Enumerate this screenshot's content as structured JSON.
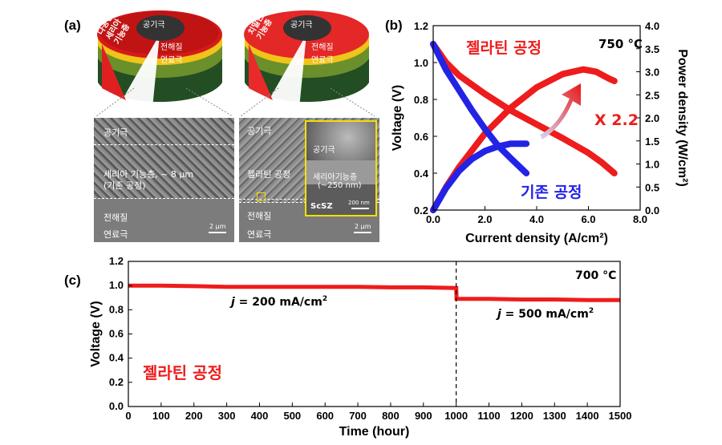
{
  "panel_a": {
    "label": "(a)",
    "left": {
      "top_labels": [
        "공기극",
        "전해질",
        "연료극"
      ],
      "side_text": "다공성 세리아 기능층",
      "sem": {
        "labels": [
          "공기극",
          "세리아 기능층, ~ 8 μm",
          "(기존 공정)",
          "전해질",
          "연료극"
        ],
        "scalebar": "2 μm"
      }
    },
    "right": {
      "top_labels": [
        "공기극",
        "전해질",
        "연료극"
      ],
      "side_text": "치밀한 기능층",
      "sem": {
        "labels": [
          "공기극",
          "젤라틴 공정",
          "전해질",
          "연료극"
        ],
        "scalebar": "2 μm",
        "inset": {
          "labels": [
            "공기극",
            "세리아기능층",
            "(~250 nm)",
            "ScSZ"
          ],
          "scalebar": "200 nm"
        }
      }
    }
  },
  "panel_b": {
    "label": "(b)",
    "temperature": "750 °C",
    "annotation_new": "젤라틴 공정",
    "annotation_old": "기존 공정",
    "factor": "X 2.2",
    "colors": {
      "new": "#ee1c1c",
      "old": "#2323e6"
    }
  },
  "panel_c": {
    "label": "(c)",
    "temperature": "700 °C",
    "annotation_process": "젤라틴 공정",
    "j1_prefix": "j",
    "j1_rest": " = 200 mA/cm",
    "j1_sup": "2",
    "j2_prefix": "j",
    "j2_rest": " = 500 mA/cm",
    "j2_sup": "2",
    "color": "#ee1c1c"
  },
  "chart_data": [
    {
      "type": "line",
      "xlabel": "Current density (A/cm²)",
      "ylabel": "Voltage (V)",
      "y2label": "Power density (W/cm²)",
      "xlim": [
        0,
        8
      ],
      "ylim": [
        0.2,
        1.2
      ],
      "y2lim": [
        0,
        4
      ],
      "xticks": [
        "0.0",
        "2.0",
        "4.0",
        "6.0",
        "8.0"
      ],
      "yticks": [
        "0.2",
        "0.4",
        "0.6",
        "0.8",
        "1.0",
        "1.2"
      ],
      "y2ticks": [
        "0.0",
        "0.5",
        "1.0",
        "1.5",
        "2.0",
        "2.5",
        "3.0",
        "3.5",
        "4.0"
      ],
      "series": [
        {
          "name": "젤라틴 공정",
          "axis": "voltage",
          "x": [
            0,
            0.5,
            1.0,
            2.0,
            3.0,
            4.0,
            5.0,
            6.0,
            6.5,
            7.0
          ],
          "y": [
            1.1,
            1.0,
            0.93,
            0.83,
            0.74,
            0.665,
            0.59,
            0.51,
            0.46,
            0.4
          ]
        },
        {
          "name": "젤라틴 공정",
          "axis": "power",
          "x": [
            0,
            0.5,
            1.0,
            2.0,
            3.0,
            4.0,
            5.0,
            5.8,
            6.3,
            6.8,
            7.0
          ],
          "y": [
            0,
            0.5,
            0.93,
            1.66,
            2.22,
            2.66,
            2.95,
            3.05,
            3.0,
            2.85,
            2.8
          ]
        },
        {
          "name": "기존 공정",
          "axis": "voltage",
          "x": [
            0,
            0.5,
            1.0,
            1.5,
            2.0,
            2.5,
            3.0,
            3.6
          ],
          "y": [
            1.1,
            0.96,
            0.85,
            0.74,
            0.64,
            0.55,
            0.48,
            0.4
          ]
        },
        {
          "name": "기존 공정",
          "axis": "power",
          "x": [
            0,
            0.5,
            1.0,
            1.5,
            2.0,
            2.5,
            3.0,
            3.6
          ],
          "y": [
            0,
            0.48,
            0.85,
            1.11,
            1.28,
            1.38,
            1.44,
            1.44
          ]
        }
      ]
    },
    {
      "type": "line",
      "xlabel": "Time (hour)",
      "ylabel": "Voltage (V)",
      "xlim": [
        0,
        1500
      ],
      "ylim": [
        0,
        1.2
      ],
      "xticks": [
        "0",
        "100",
        "200",
        "300",
        "400",
        "500",
        "600",
        "700",
        "800",
        "900",
        "1000",
        "1100",
        "1200",
        "1300",
        "1400",
        "1500"
      ],
      "yticks": [
        "0.0",
        "0.2",
        "0.4",
        "0.6",
        "0.8",
        "1.0",
        "1.2"
      ],
      "vline_x": 1000,
      "series": [
        {
          "name": "젤라틴 공정",
          "x": [
            0,
            100,
            200,
            300,
            400,
            500,
            600,
            700,
            800,
            900,
            1000,
            1001,
            1100,
            1200,
            1300,
            1400,
            1500
          ],
          "y": [
            1.0,
            1.0,
            0.995,
            0.99,
            0.99,
            0.99,
            0.99,
            0.99,
            0.985,
            0.985,
            0.98,
            0.89,
            0.89,
            0.885,
            0.885,
            0.88,
            0.88
          ]
        }
      ]
    }
  ]
}
